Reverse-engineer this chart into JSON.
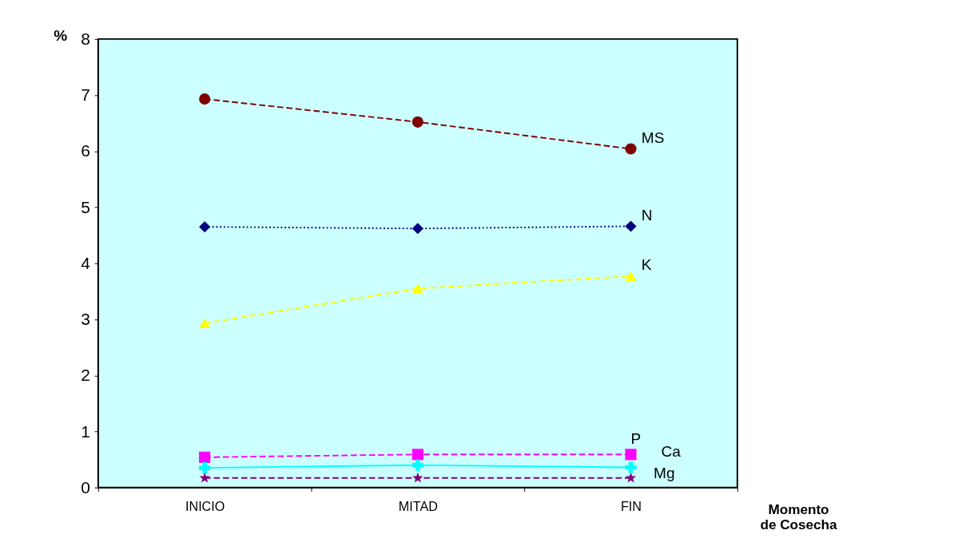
{
  "chart_data": {
    "type": "line",
    "xlabel": "Momento de Cosecha",
    "ylabel": "%",
    "categories": [
      "INICIO",
      "MITAD",
      "FIN"
    ],
    "ylim": [
      0,
      8
    ],
    "yticks": [
      {
        "value": 0,
        "label": "0"
      },
      {
        "value": 1,
        "label": "1"
      },
      {
        "value": 2,
        "label": "2"
      },
      {
        "value": 3,
        "label": "3"
      },
      {
        "value": 4,
        "label": "4"
      },
      {
        "value": 5,
        "label": "5"
      },
      {
        "value": 6,
        "label": "6"
      },
      {
        "value": 7,
        "label": "7"
      },
      {
        "value": 8,
        "label": "8"
      }
    ],
    "grid": false,
    "legend": false,
    "series": [
      {
        "name": "MS",
        "color": "#800000",
        "marker": "circle",
        "line_style": "dashed",
        "values": [
          6.93,
          6.52,
          6.04
        ]
      },
      {
        "name": "N",
        "color": "#000080",
        "marker": "diamond",
        "line_style": "dotted",
        "values": [
          4.65,
          4.62,
          4.66
        ]
      },
      {
        "name": "K",
        "color": "#ffff00",
        "marker": "triangle",
        "line_style": "dashed",
        "values": [
          2.93,
          3.55,
          3.77
        ]
      },
      {
        "name": "P",
        "color": "#ff00ff",
        "marker": "square",
        "line_style": "dashed",
        "values": [
          0.54,
          0.59,
          0.59
        ]
      },
      {
        "name": "Ca",
        "color": "#00ffff",
        "marker": "cross",
        "line_style": "solid",
        "values": [
          0.35,
          0.4,
          0.36
        ]
      },
      {
        "name": "Mg",
        "color": "#800080",
        "marker": "star",
        "line_style": "dashed",
        "values": [
          0.17,
          0.17,
          0.17
        ]
      }
    ]
  }
}
